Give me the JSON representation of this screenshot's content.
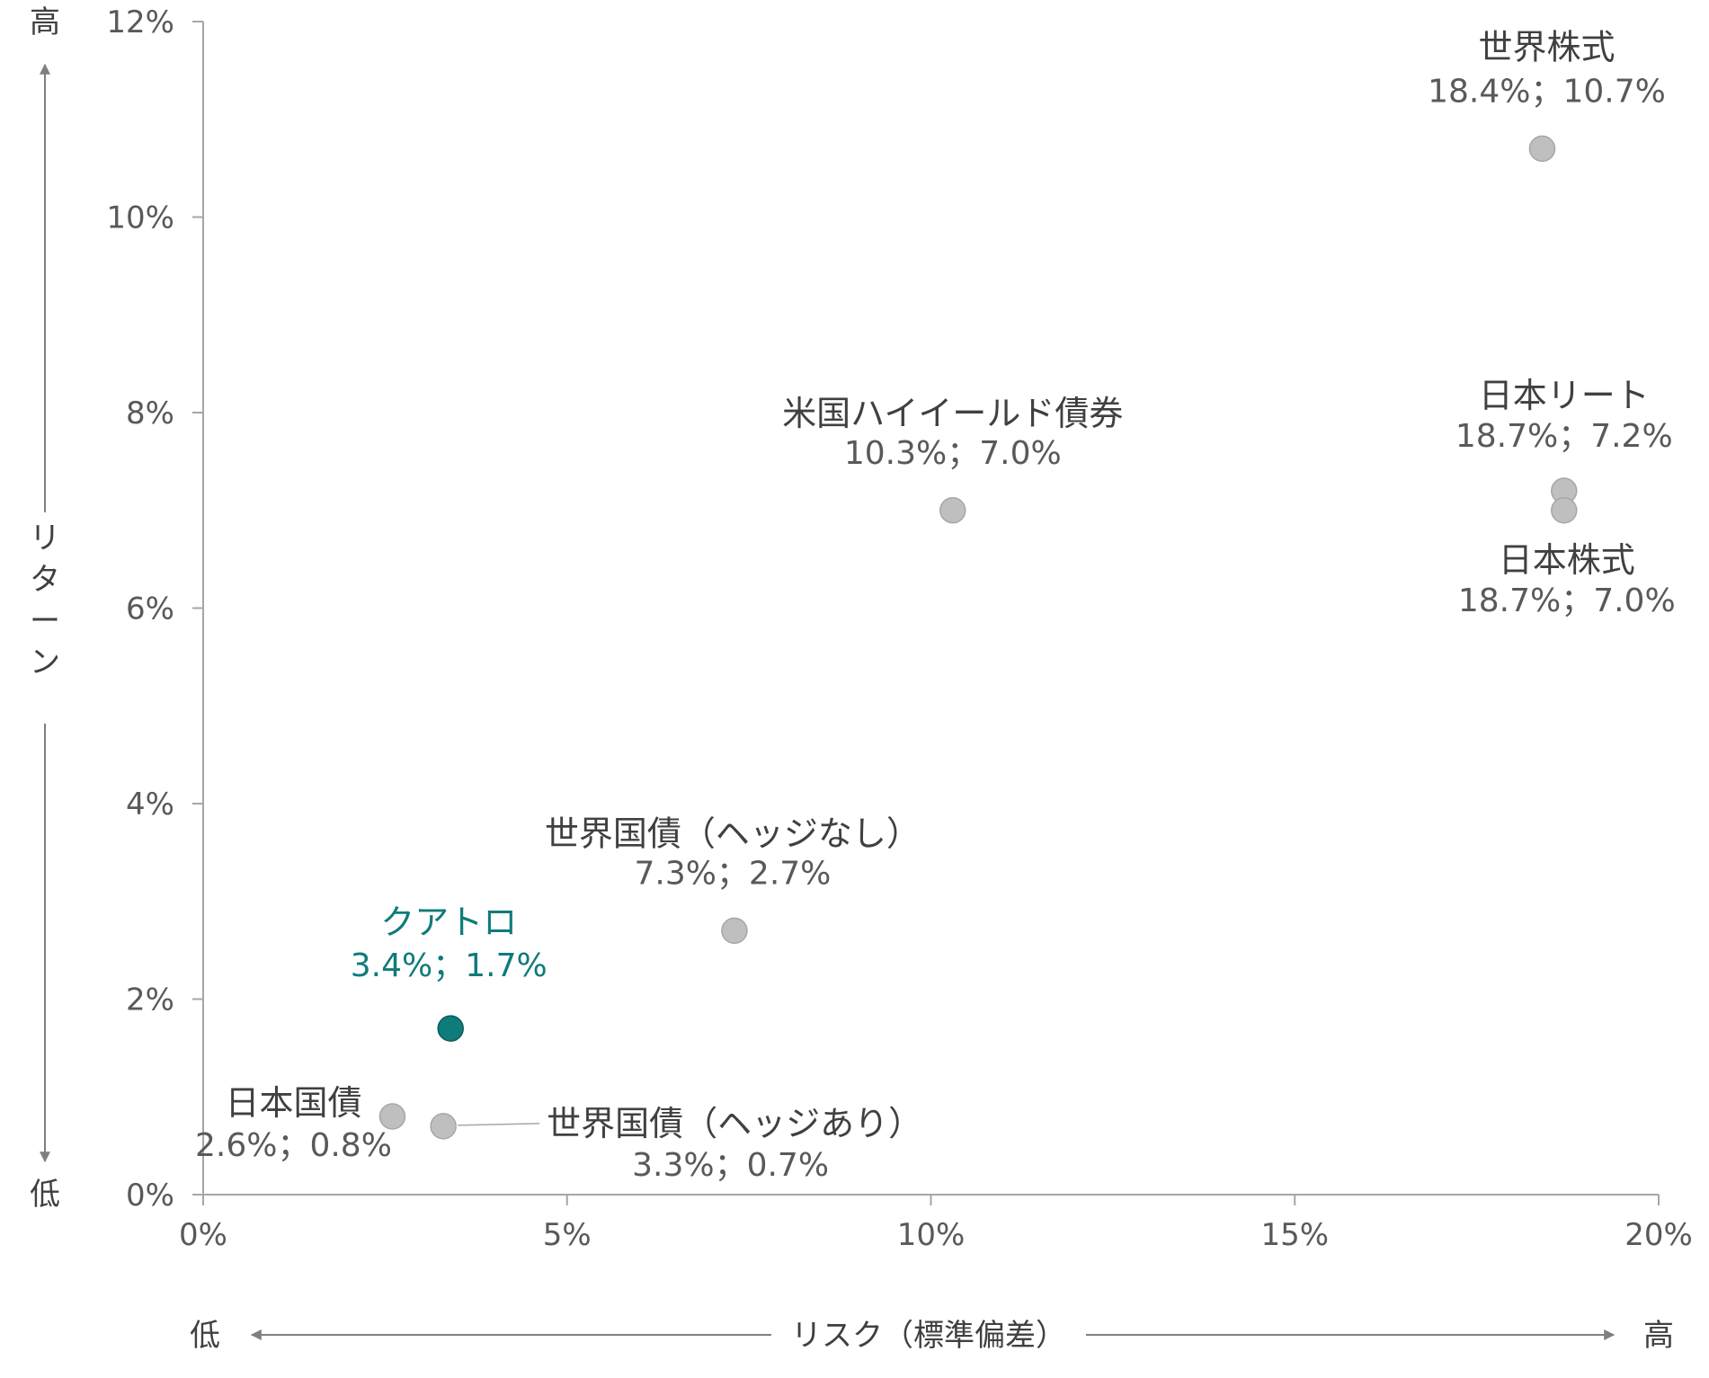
{
  "chart_data": {
    "type": "scatter",
    "xlabel": "リスク（標準偏差）",
    "ylabel": "リターン",
    "x_low_label": "低",
    "x_high_label": "高",
    "y_low_label": "低",
    "y_high_label": "高",
    "xlim": [
      0,
      20
    ],
    "ylim": [
      0,
      12
    ],
    "x_ticks": [
      0,
      5,
      10,
      15,
      20
    ],
    "y_ticks": [
      0,
      2,
      4,
      6,
      8,
      10,
      12
    ],
    "x_tick_labels": [
      "0%",
      "5%",
      "10%",
      "15%",
      "20%"
    ],
    "y_tick_labels": [
      "0%",
      "2%",
      "4%",
      "6%",
      "8%",
      "10%",
      "12%"
    ],
    "grid": false,
    "colors": {
      "default_point": "#bfbfbf",
      "highlight_point": "#0f7b7a"
    },
    "points": [
      {
        "name": "世界株式",
        "value_label": "18.4%；10.7%",
        "x": 18.4,
        "y": 10.7,
        "highlight": false
      },
      {
        "name": "日本リート",
        "value_label": "18.7%；7.2%",
        "x": 18.7,
        "y": 7.2,
        "highlight": false
      },
      {
        "name": "日本株式",
        "value_label": "18.7%；7.0%",
        "x": 18.7,
        "y": 7.0,
        "highlight": false
      },
      {
        "name": "米国ハイイールド債券",
        "value_label": "10.3%；7.0%",
        "x": 10.3,
        "y": 7.0,
        "highlight": false
      },
      {
        "name": "世界国債（ヘッジなし）",
        "value_label": "7.3%；2.7%",
        "x": 7.3,
        "y": 2.7,
        "highlight": false
      },
      {
        "name": "クアトロ",
        "value_label": "3.4%；1.7%",
        "x": 3.4,
        "y": 1.7,
        "highlight": true
      },
      {
        "name": "日本国債",
        "value_label": "2.6%；0.8%",
        "x": 2.6,
        "y": 0.8,
        "highlight": false
      },
      {
        "name": "世界国債（ヘッジあり）",
        "value_label": "3.3%；0.7%",
        "x": 3.3,
        "y": 0.7,
        "highlight": false
      }
    ]
  }
}
